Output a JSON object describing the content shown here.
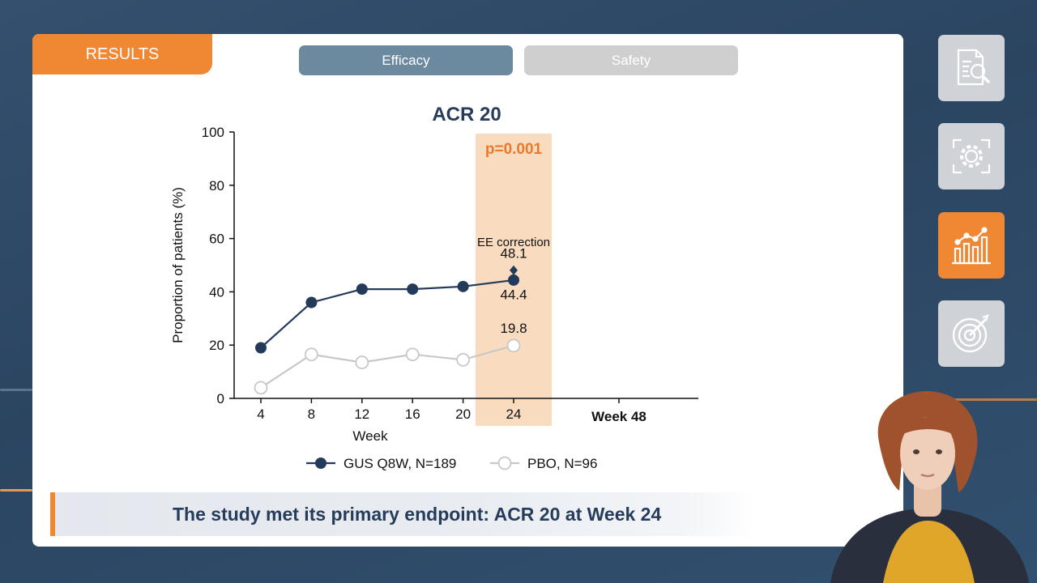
{
  "header": {
    "section_label": "RESULTS",
    "tabs": [
      {
        "label": "Efficacy",
        "active": true
      },
      {
        "label": "Safety",
        "active": false
      }
    ]
  },
  "chart_data": {
    "type": "line",
    "title": "ACR 20",
    "xlabel": "Week",
    "ylabel": "Proportion of patients (%)",
    "ylim": [
      0,
      100
    ],
    "yticks": [
      0,
      20,
      40,
      60,
      80,
      100
    ],
    "x": [
      4,
      8,
      12,
      16,
      20,
      24
    ],
    "extra_xtick_label": "Week 48",
    "series": [
      {
        "name": "GUS Q8W, N=189",
        "values": [
          19,
          36,
          41,
          41,
          42,
          44.4
        ],
        "color": "#233a5b",
        "marker": "filled-circle"
      },
      {
        "name": "PBO, N=96",
        "values": [
          4,
          16.5,
          13.5,
          16.5,
          14.5,
          19.8
        ],
        "color": "#c8c8c8",
        "marker": "open-circle"
      }
    ],
    "highlight": {
      "x": 24,
      "label": "p=0.001",
      "color": "#f9dcc0",
      "label_color": "#ea7a2b"
    },
    "annotations": [
      {
        "text": "EE correction",
        "x": 24,
        "y": 59
      },
      {
        "text": "48.1",
        "x": 24,
        "y": 54.5
      },
      {
        "text": "44.4",
        "x": 24,
        "y": 39
      },
      {
        "text": "19.8",
        "x": 24,
        "y": 26.5
      }
    ],
    "extra_points": [
      {
        "x": 24,
        "y": 48.1,
        "marker": "diamond",
        "series": "GUS Q8W, N=189"
      }
    ],
    "legend_position": "bottom",
    "grid": false
  },
  "caption": {
    "text": "The study met its primary endpoint: ACR 20 at Week 24"
  },
  "sidebar": {
    "buttons": [
      {
        "icon": "document-search-icon",
        "active": false
      },
      {
        "icon": "process-gear-icon",
        "active": false
      },
      {
        "icon": "bar-chart-icon",
        "active": true
      },
      {
        "icon": "target-icon",
        "active": false
      }
    ]
  },
  "colors": {
    "accent": "#ef8733",
    "navy": "#233a5b",
    "background": "#2f4a68"
  }
}
